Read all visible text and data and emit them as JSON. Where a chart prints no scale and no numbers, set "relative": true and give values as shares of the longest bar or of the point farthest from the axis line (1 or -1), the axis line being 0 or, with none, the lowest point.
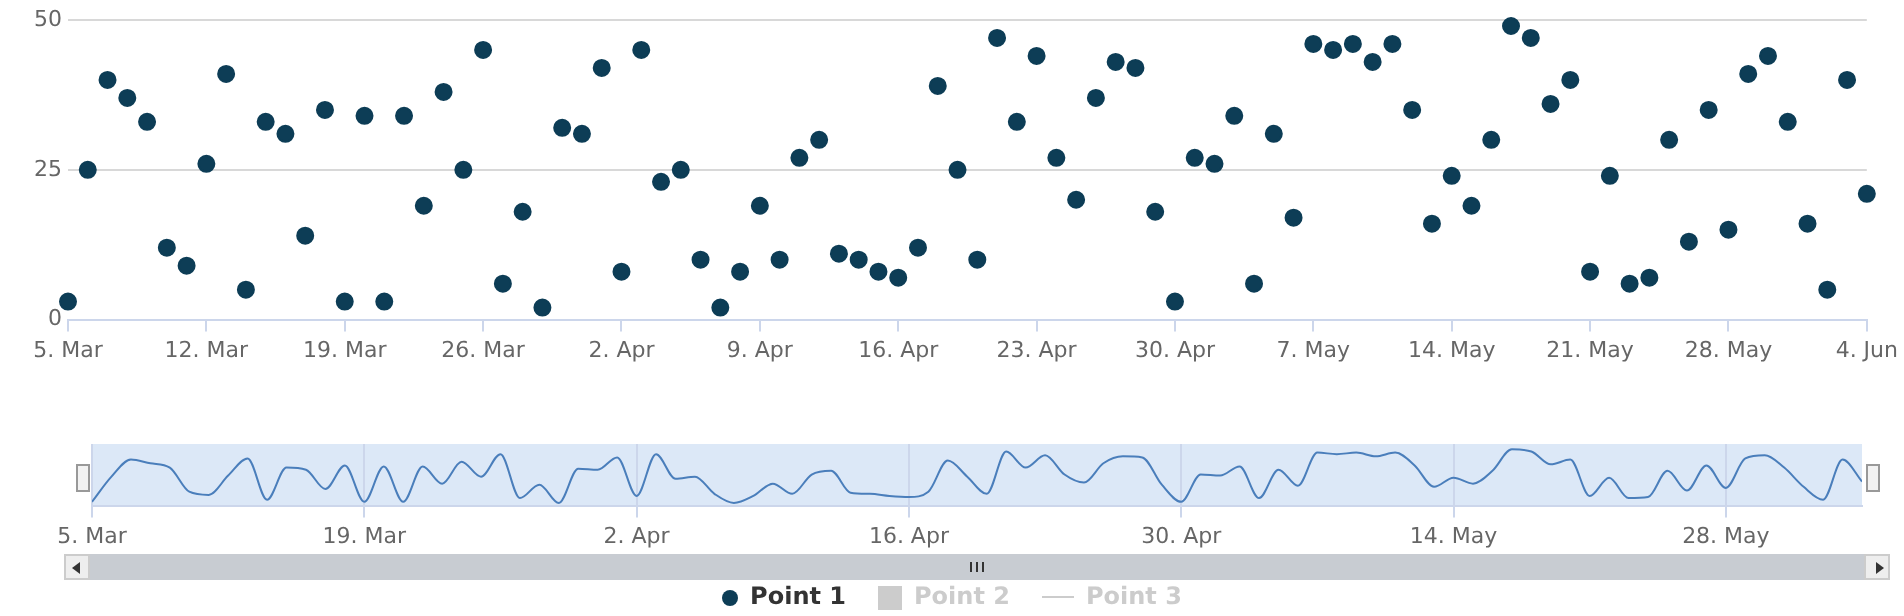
{
  "chart_data": [
    {
      "type": "scatter",
      "x": [
        "--03-05",
        "--03-06",
        "--03-07",
        "--03-08",
        "--03-09",
        "--03-10",
        "--03-11",
        "--03-12",
        "--03-13",
        "--03-14",
        "--03-15",
        "--03-16",
        "--03-17",
        "--03-18",
        "--03-19",
        "--03-20",
        "--03-21",
        "--03-22",
        "--03-23",
        "--03-24",
        "--03-25",
        "--03-26",
        "--03-27",
        "--03-28",
        "--03-29",
        "--03-30",
        "--03-31",
        "--04-01",
        "--04-02",
        "--04-03",
        "--04-04",
        "--04-05",
        "--04-06",
        "--04-07",
        "--04-08",
        "--04-09",
        "--04-10",
        "--04-11",
        "--04-12",
        "--04-13",
        "--04-14",
        "--04-15",
        "--04-16",
        "--04-17",
        "--04-18",
        "--04-19",
        "--04-20",
        "--04-21",
        "--04-22",
        "--04-23",
        "--04-24",
        "--04-25",
        "--04-26",
        "--04-27",
        "--04-28",
        "--04-29",
        "--04-30",
        "--05-01",
        "--05-02",
        "--05-03",
        "--05-04",
        "--05-05",
        "--05-06",
        "--05-07",
        "--05-08",
        "--05-09",
        "--05-10",
        "--05-11",
        "--05-12",
        "--05-13",
        "--05-14",
        "--05-15",
        "--05-16",
        "--05-17",
        "--05-18",
        "--05-19",
        "--05-20",
        "--05-21",
        "--05-22",
        "--05-23",
        "--05-24",
        "--05-25",
        "--05-26",
        "--05-27",
        "--05-28",
        "--05-29",
        "--05-30",
        "--05-31",
        "--06-01",
        "--06-02",
        "--06-03",
        "--06-04"
      ],
      "series": [
        {
          "name": "Point 1",
          "type": "scatter",
          "color": "#0d3d56",
          "values": [
            3,
            25,
            40,
            37,
            33,
            12,
            9,
            26,
            41,
            5,
            33,
            31,
            14,
            35,
            3,
            34,
            3,
            34,
            19,
            38,
            25,
            45,
            6,
            18,
            2,
            32,
            31,
            42,
            8,
            45,
            23,
            25,
            10,
            2,
            8,
            19,
            10,
            27,
            30,
            11,
            10,
            8,
            7,
            12,
            39,
            25,
            10,
            47,
            33,
            44,
            27,
            20,
            37,
            43,
            42,
            18,
            3,
            27,
            26,
            34,
            6,
            31,
            17,
            46,
            45,
            46,
            43,
            46,
            35,
            16,
            24,
            19,
            30,
            49,
            47,
            36,
            40,
            8,
            24,
            6,
            7,
            30,
            13,
            35,
            15,
            41,
            44,
            33,
            16,
            5,
            40,
            21
          ]
        },
        {
          "name": "Point 2",
          "type": "area",
          "color": "#cccccc",
          "values": [
            null,
            null,
            null,
            null,
            null,
            null,
            null,
            null,
            null,
            null,
            null,
            null,
            null,
            null,
            null,
            null,
            null,
            null,
            null,
            null,
            null,
            null,
            null,
            null,
            null,
            null,
            null,
            null,
            null,
            null,
            null,
            null,
            null,
            null,
            null,
            null,
            null,
            null,
            null,
            null,
            null,
            null,
            null,
            null,
            null,
            null,
            null,
            null,
            null,
            null,
            null,
            null,
            null,
            null,
            null,
            null,
            null,
            null,
            null,
            null,
            null,
            null,
            null,
            null,
            null,
            null,
            null,
            null,
            null,
            null,
            null,
            null,
            null,
            null,
            null,
            null,
            null,
            null,
            null,
            null,
            null,
            null,
            null,
            null,
            null,
            null,
            null,
            null,
            null,
            null,
            null,
            null
          ]
        },
        {
          "name": "Point 3",
          "type": "line",
          "color": "#cccccc",
          "values": [
            null,
            null,
            null,
            null,
            null,
            null,
            null,
            null,
            null,
            null,
            null,
            null,
            null,
            null,
            null,
            null,
            null,
            null,
            null,
            null,
            null,
            null,
            null,
            null,
            null,
            null,
            null,
            null,
            null,
            null,
            null,
            null,
            null,
            null,
            null,
            null,
            null,
            null,
            null,
            null,
            null,
            null,
            null,
            null,
            null,
            null,
            null,
            null,
            null,
            null,
            null,
            null,
            null,
            null,
            null,
            null,
            null,
            null,
            null,
            null,
            null,
            null,
            null,
            null,
            null,
            null,
            null,
            null,
            null,
            null,
            null,
            null,
            null,
            null,
            null,
            null,
            null,
            null,
            null,
            null,
            null,
            null,
            null,
            null,
            null,
            null,
            null,
            null,
            null,
            null,
            null,
            null
          ]
        }
      ],
      "xlim": [
        "--03-05",
        "--06-04"
      ],
      "xticks": [
        {
          "value": "--03-05",
          "label": "5. Mar"
        },
        {
          "value": "--03-12",
          "label": "12. Mar"
        },
        {
          "value": "--03-19",
          "label": "19. Mar"
        },
        {
          "value": "--03-26",
          "label": "26. Mar"
        },
        {
          "value": "--04-02",
          "label": "2. Apr"
        },
        {
          "value": "--04-09",
          "label": "9. Apr"
        },
        {
          "value": "--04-16",
          "label": "16. Apr"
        },
        {
          "value": "--04-23",
          "label": "23. Apr"
        },
        {
          "value": "--04-30",
          "label": "30. Apr"
        },
        {
          "value": "--05-07",
          "label": "7. May"
        },
        {
          "value": "--05-14",
          "label": "14. May"
        },
        {
          "value": "--05-21",
          "label": "21. May"
        },
        {
          "value": "--05-28",
          "label": "28. May"
        },
        {
          "value": "--06-04",
          "label": "4. Jun"
        }
      ],
      "ylim": [
        0,
        50
      ],
      "yticks": [
        0,
        25,
        50
      ],
      "grid": "y",
      "legend": "bottom",
      "marker": "circle"
    },
    {
      "type": "line",
      "relative": true,
      "x": [
        "--03-05",
        "--03-06",
        "--03-07",
        "--03-08",
        "--03-09",
        "--03-10",
        "--03-11",
        "--03-12",
        "--03-13",
        "--03-14",
        "--03-15",
        "--03-16",
        "--03-17",
        "--03-18",
        "--03-19",
        "--03-20",
        "--03-21",
        "--03-22",
        "--03-23",
        "--03-24",
        "--03-25",
        "--03-26",
        "--03-27",
        "--03-28",
        "--03-29",
        "--03-30",
        "--03-31",
        "--04-01",
        "--04-02",
        "--04-03",
        "--04-04",
        "--04-05",
        "--04-06",
        "--04-07",
        "--04-08",
        "--04-09",
        "--04-10",
        "--04-11",
        "--04-12",
        "--04-13",
        "--04-14",
        "--04-15",
        "--04-16",
        "--04-17",
        "--04-18",
        "--04-19",
        "--04-20",
        "--04-21",
        "--04-22",
        "--04-23",
        "--04-24",
        "--04-25",
        "--04-26",
        "--04-27",
        "--04-28",
        "--04-29",
        "--04-30",
        "--05-01",
        "--05-02",
        "--05-03",
        "--05-04",
        "--05-05",
        "--05-06",
        "--05-07",
        "--05-08",
        "--05-09",
        "--05-10",
        "--05-11",
        "--05-12",
        "--05-13",
        "--05-14",
        "--05-15",
        "--05-16",
        "--05-17",
        "--05-18",
        "--05-19",
        "--05-20",
        "--05-21",
        "--05-22",
        "--05-23",
        "--05-24",
        "--05-25",
        "--05-26",
        "--05-27",
        "--05-28",
        "--05-29",
        "--05-30",
        "--05-31",
        "--06-01",
        "--06-02",
        "--06-03",
        "--06-04"
      ],
      "color": "#4a7ebb",
      "values": [
        0.02,
        0.49,
        0.81,
        0.74,
        0.66,
        0.21,
        0.15,
        0.51,
        0.83,
        0.06,
        0.66,
        0.62,
        0.26,
        0.7,
        0.02,
        0.68,
        0.02,
        0.68,
        0.36,
        0.77,
        0.49,
        0.91,
        0.09,
        0.34,
        0,
        0.64,
        0.62,
        0.85,
        0.13,
        0.91,
        0.45,
        0.49,
        0.17,
        0,
        0.13,
        0.36,
        0.17,
        0.53,
        0.6,
        0.19,
        0.17,
        0.13,
        0.11,
        0.21,
        0.79,
        0.49,
        0.17,
        0.96,
        0.66,
        0.89,
        0.53,
        0.38,
        0.74,
        0.87,
        0.85,
        0.34,
        0.02,
        0.53,
        0.51,
        0.68,
        0.09,
        0.62,
        0.32,
        0.94,
        0.91,
        0.94,
        0.87,
        0.94,
        0.7,
        0.3,
        0.47,
        0.36,
        0.6,
        1,
        0.96,
        0.72,
        0.81,
        0.13,
        0.47,
        0.09,
        0.11,
        0.6,
        0.23,
        0.7,
        0.28,
        0.83,
        0.89,
        0.66,
        0.3,
        0.06,
        0.81,
        0.4
      ],
      "xlim": [
        "--03-05",
        "--06-04"
      ],
      "xticks": [
        {
          "value": "--03-05",
          "label": "5. Mar"
        },
        {
          "value": "--03-19",
          "label": "19. Mar"
        },
        {
          "value": "--04-02",
          "label": "2. Apr"
        },
        {
          "value": "--04-16",
          "label": "16. Apr"
        },
        {
          "value": "--04-30",
          "label": "30. Apr"
        },
        {
          "value": "--05-14",
          "label": "14. May"
        },
        {
          "value": "--05-28",
          "label": "28. May"
        }
      ],
      "grid": "x"
    }
  ]
}
